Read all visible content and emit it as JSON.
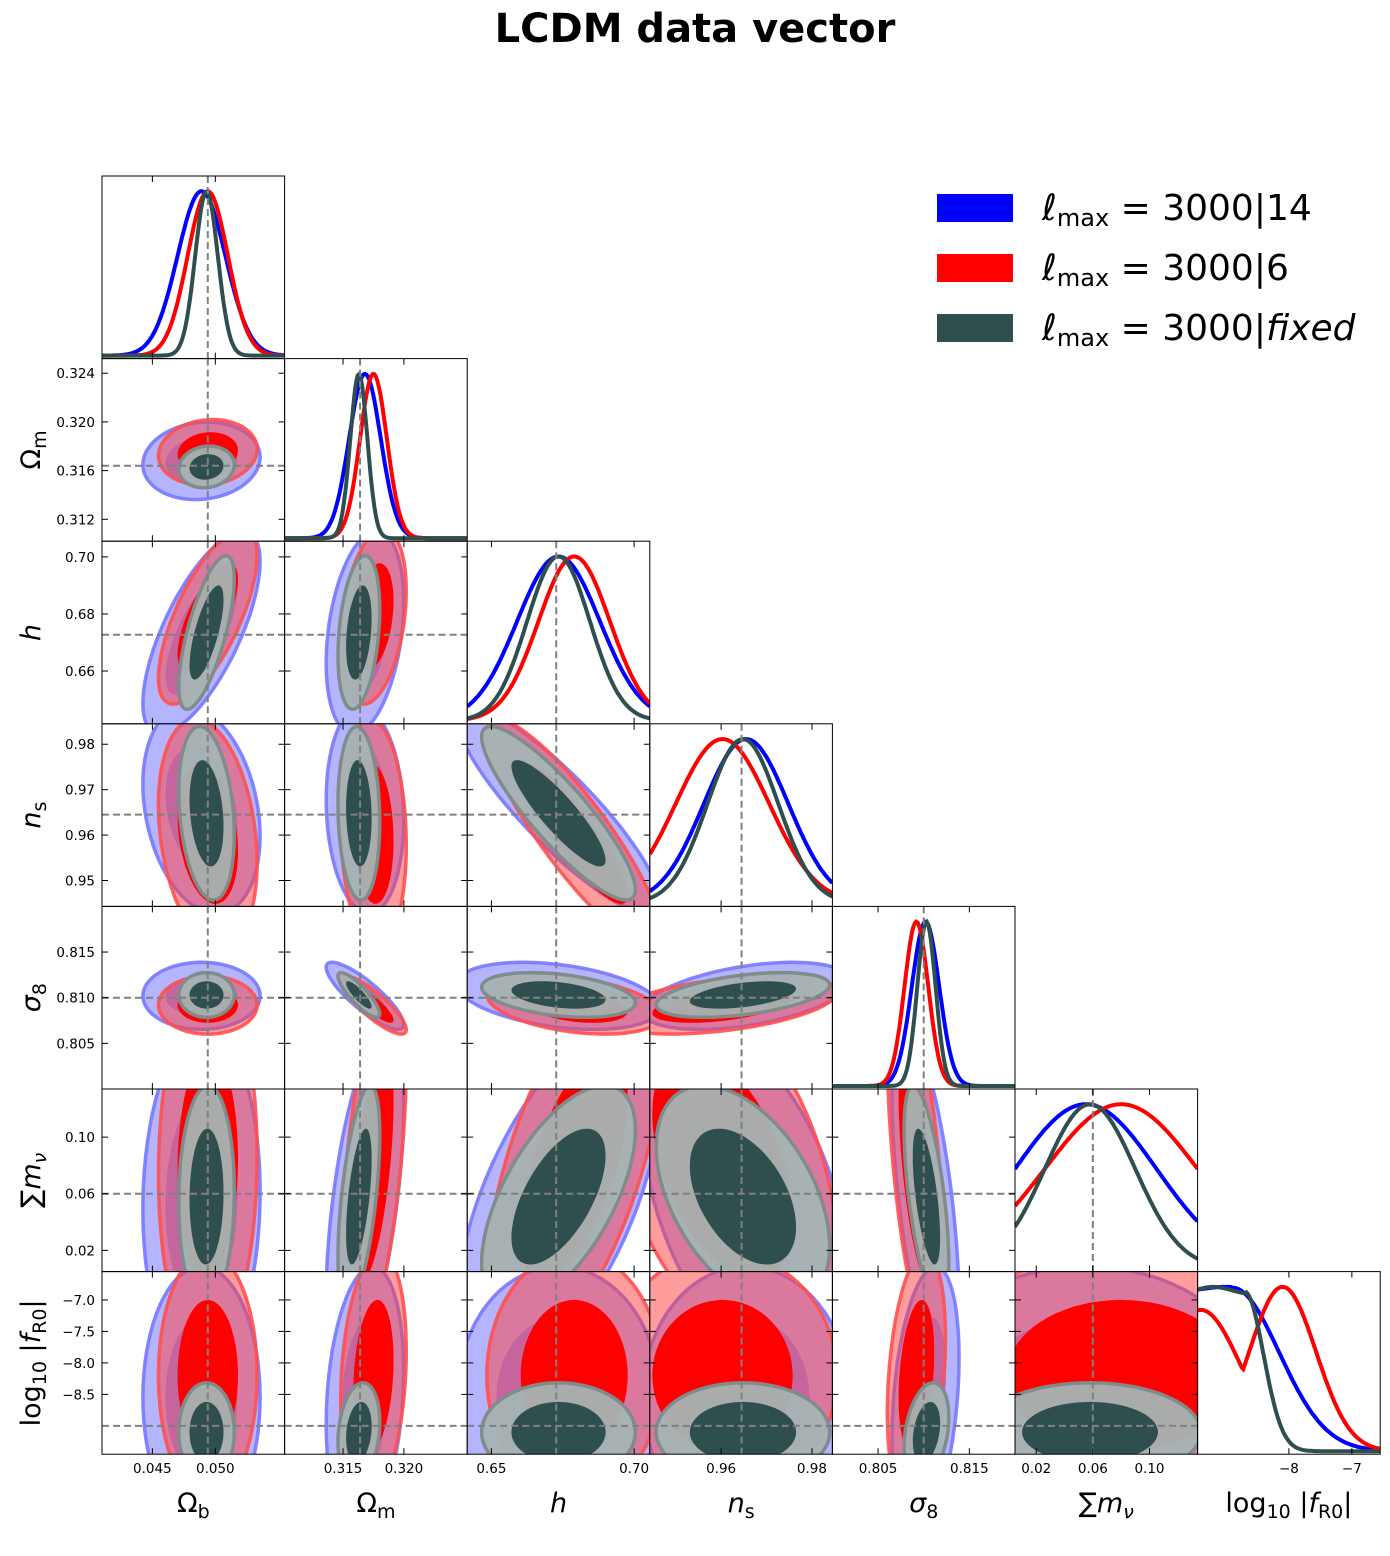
{
  "chart_data": {
    "type": "corner",
    "title": "LCDM data vector",
    "parameters": [
      {
        "key": "ob",
        "label": "Ω_b",
        "range": [
          0.041,
          0.0555
        ],
        "ticks": [
          0.045,
          0.05
        ],
        "tick_labels": [
          "0.045",
          "0.050"
        ],
        "truth": 0.0494
      },
      {
        "key": "om",
        "label": "Ω_m",
        "range": [
          0.3102,
          0.3252
        ],
        "ticks": [
          0.312,
          0.316,
          0.32,
          0.324
        ],
        "tick_labels": [
          "0.312",
          "0.316",
          "0.320",
          "0.324"
        ],
        "x_ticks": [
          0.315,
          0.32
        ],
        "x_tick_labels": [
          "0.315",
          "0.320"
        ],
        "truth": 0.3164
      },
      {
        "key": "h",
        "label": "h",
        "range": [
          0.6415,
          0.7055
        ],
        "ticks": [
          0.66,
          0.68,
          0.7
        ],
        "tick_labels": [
          "0.66",
          "0.68",
          "0.70"
        ],
        "x_ticks": [
          0.65,
          0.7
        ],
        "x_tick_labels": [
          "0.65",
          "0.70"
        ],
        "truth": 0.6727
      },
      {
        "key": "ns",
        "label": "n_s",
        "range": [
          0.9443,
          0.9845
        ],
        "ticks": [
          0.95,
          0.96,
          0.97,
          0.98
        ],
        "tick_labels": [
          "0.95",
          "0.96",
          "0.97",
          "0.98"
        ],
        "x_ticks": [
          0.96,
          0.98
        ],
        "x_tick_labels": [
          "0.96",
          "0.98"
        ],
        "truth": 0.9645
      },
      {
        "key": "s8",
        "label": "σ_8",
        "range": [
          0.8,
          0.82
        ],
        "ticks": [
          0.805,
          0.81,
          0.815
        ],
        "tick_labels": [
          "0.805",
          "0.810",
          "0.815"
        ],
        "x_ticks": [
          0.805,
          0.815
        ],
        "x_tick_labels": [
          "0.805",
          "0.815"
        ],
        "truth": 0.81
      },
      {
        "key": "mnu",
        "label": "∑m_ν",
        "range": [
          0.005,
          0.134
        ],
        "ticks": [
          0.02,
          0.06,
          0.1
        ],
        "tick_labels": [
          "0.02",
          "0.06",
          "0.10"
        ],
        "x_ticks": [
          0.02,
          0.06,
          0.1
        ],
        "x_tick_labels": [
          "0.02",
          "0.06",
          "0.10"
        ],
        "truth": 0.06
      },
      {
        "key": "fr",
        "label": "log10 |f_R0|",
        "range": [
          -9.45,
          -6.55
        ],
        "ticks": [
          -8.5,
          -8.0,
          -7.5,
          -7.0
        ],
        "tick_labels": [
          "−8.5",
          "−8.0",
          "−7.5",
          "−7.0"
        ],
        "x_ticks": [
          -8,
          -7
        ],
        "x_tick_labels": [
          "−8",
          "−7"
        ],
        "truth": -9.0
      }
    ],
    "series": [
      {
        "name": "ℓmax = 3000|14",
        "color": "#0000ff",
        "mean": {
          "ob": 0.0489,
          "om": 0.3168,
          "h": 0.6735,
          "ns": 0.9655,
          "s8": 0.8102,
          "mnu": 0.055
        },
        "sigma": {
          "ob": 0.0019,
          "om": 0.0013,
          "h": 0.0145,
          "ns": 0.0093,
          "s8": 0.0015,
          "mnu": 0.05
        }
      },
      {
        "name": "ℓmax = 3000|6",
        "color": "#ff0000",
        "mean": {
          "ob": 0.0494,
          "om": 0.3175,
          "h": 0.679,
          "ns": 0.9603,
          "s8": 0.8092,
          "mnu": 0.08
        },
        "sigma": {
          "ob": 0.0016,
          "om": 0.0011,
          "h": 0.0125,
          "ns": 0.0103,
          "s8": 0.0013,
          "mnu": 0.054
        }
      },
      {
        "name": "ℓmax = 3000|fixed",
        "color": "#2f4f4f",
        "mean": {
          "ob": 0.0493,
          "om": 0.3163,
          "h": 0.6735,
          "ns": 0.9648,
          "s8": 0.8103,
          "mnu": 0.058
        },
        "sigma": {
          "ob": 0.0009,
          "om": 0.0007,
          "h": 0.011,
          "ns": 0.0078,
          "s8": 0.001,
          "mnu": 0.032
        }
      }
    ],
    "legend_position": "top-right",
    "truth_line_style": "dashed grey"
  },
  "legend": {
    "item1": "ℓmax = 3000|14",
    "item2": "ℓmax = 3000|6",
    "item3": "ℓmax = 3000|fixed"
  }
}
